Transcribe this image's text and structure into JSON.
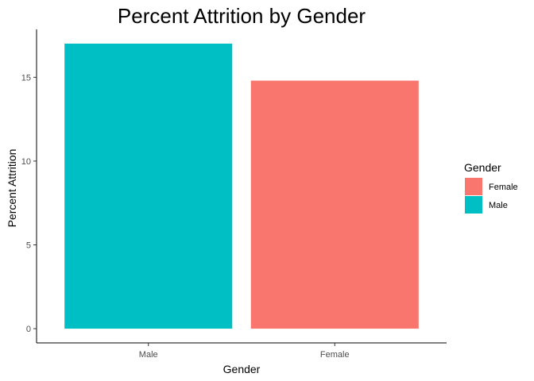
{
  "chart_data": {
    "type": "bar",
    "title": "Percent Attrition by Gender",
    "xlabel": "Gender",
    "ylabel": "Percent Attrition",
    "categories": [
      "Male",
      "Female"
    ],
    "values": [
      17.01,
      14.8
    ],
    "colors": [
      "#00BFC4",
      "#F8766D"
    ],
    "ylim": [
      -0.85,
      17.86
    ],
    "yticks": [
      0,
      5,
      10,
      15
    ],
    "grid": false,
    "legend": {
      "title": "Gender",
      "placement": "right",
      "entries": [
        {
          "label": "Female",
          "color": "#F8766D"
        },
        {
          "label": "Male",
          "color": "#00BFC4"
        }
      ]
    }
  }
}
